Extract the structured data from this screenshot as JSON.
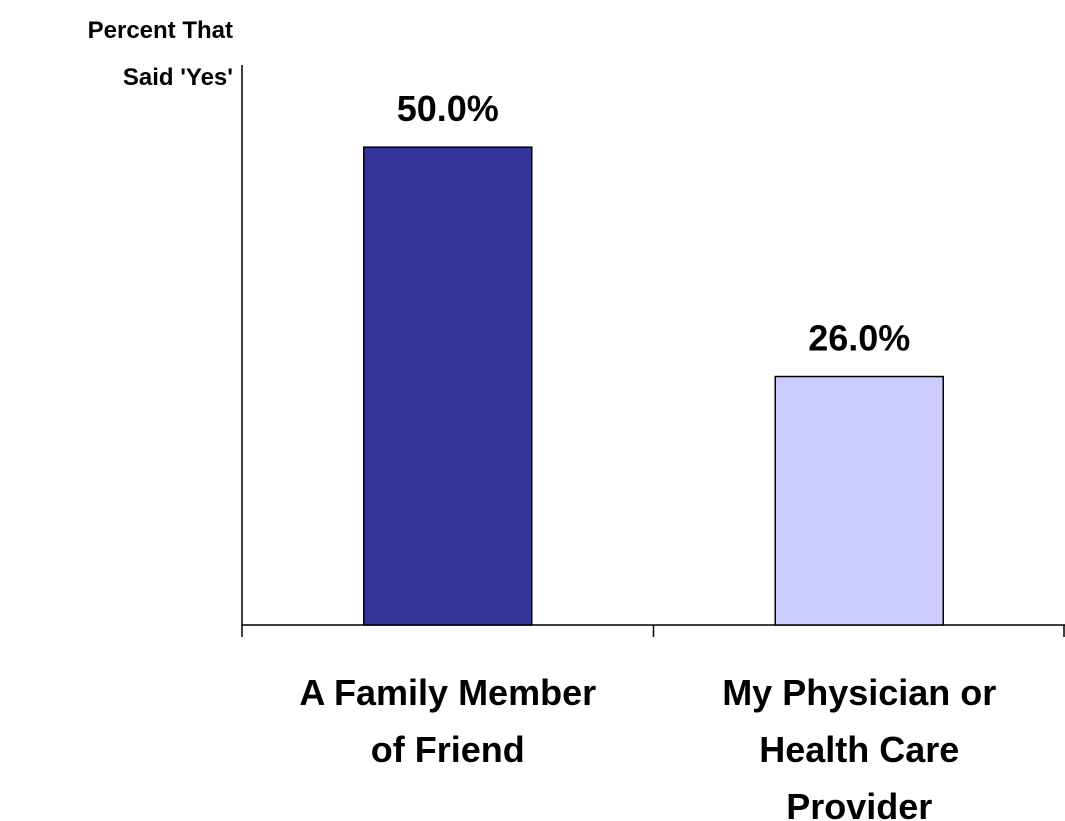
{
  "chart_data": {
    "type": "bar",
    "y_label": [
      "Percent That",
      "Said 'Yes'"
    ],
    "categories": [
      [
        "A Family Member",
        "of Friend"
      ],
      [
        "My Physician or",
        "Health Care",
        "Provider"
      ]
    ],
    "values": [
      50,
      26
    ],
    "value_labels": [
      "50.0%",
      "26.0%"
    ],
    "colors": [
      "#333399",
      "#ccccff"
    ],
    "ylim": [
      0,
      58.6
    ]
  }
}
